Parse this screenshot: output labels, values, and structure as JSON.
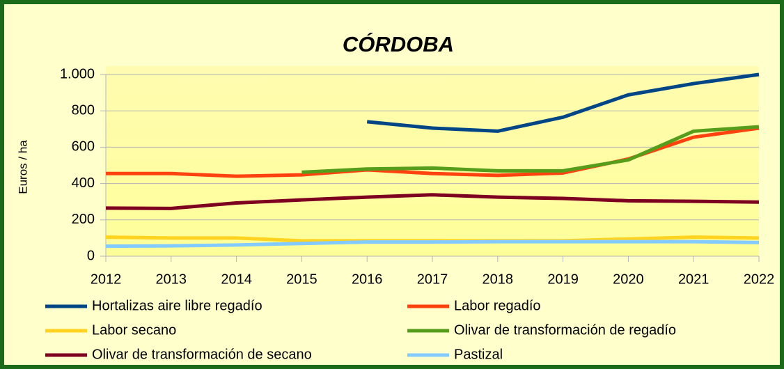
{
  "chart_data": {
    "type": "line",
    "title": "CÓRDOBA",
    "y_label": "Euros / ha",
    "categories": [
      "2012",
      "2013",
      "2014",
      "2015",
      "2016",
      "2017",
      "2018",
      "2019",
      "2020",
      "2021",
      "2022"
    ],
    "series": [
      {
        "name": "Hortalizas aire libre regadío",
        "color": "#004586",
        "values": [
          null,
          null,
          null,
          null,
          740,
          705,
          688,
          765,
          888,
          950,
          1000
        ]
      },
      {
        "name": "Labor regadío",
        "color": "#ff420e",
        "values": [
          455,
          455,
          440,
          448,
          475,
          455,
          445,
          458,
          535,
          655,
          705
        ]
      },
      {
        "name": "Labor secano",
        "color": "#ffd320",
        "values": [
          105,
          100,
          100,
          85,
          85,
          85,
          85,
          85,
          95,
          105,
          100
        ]
      },
      {
        "name": "Olivar de transformación de regadío",
        "color": "#579d1c",
        "values": [
          null,
          null,
          null,
          462,
          480,
          485,
          470,
          470,
          530,
          688,
          712
        ]
      },
      {
        "name": "Olivar de transformación de secano",
        "color": "#7e0021",
        "values": [
          265,
          263,
          293,
          310,
          325,
          338,
          325,
          318,
          305,
          302,
          298
        ]
      },
      {
        "name": "Pastizal",
        "color": "#83caff",
        "values": [
          55,
          57,
          62,
          70,
          78,
          78,
          80,
          80,
          80,
          80,
          75
        ]
      }
    ],
    "ylim": [
      0,
      1000
    ],
    "yticks": [
      0,
      200,
      400,
      600,
      800,
      {
        "value": 1000,
        "label": "1.000"
      }
    ],
    "grid": true,
    "legend": "bottom"
  }
}
